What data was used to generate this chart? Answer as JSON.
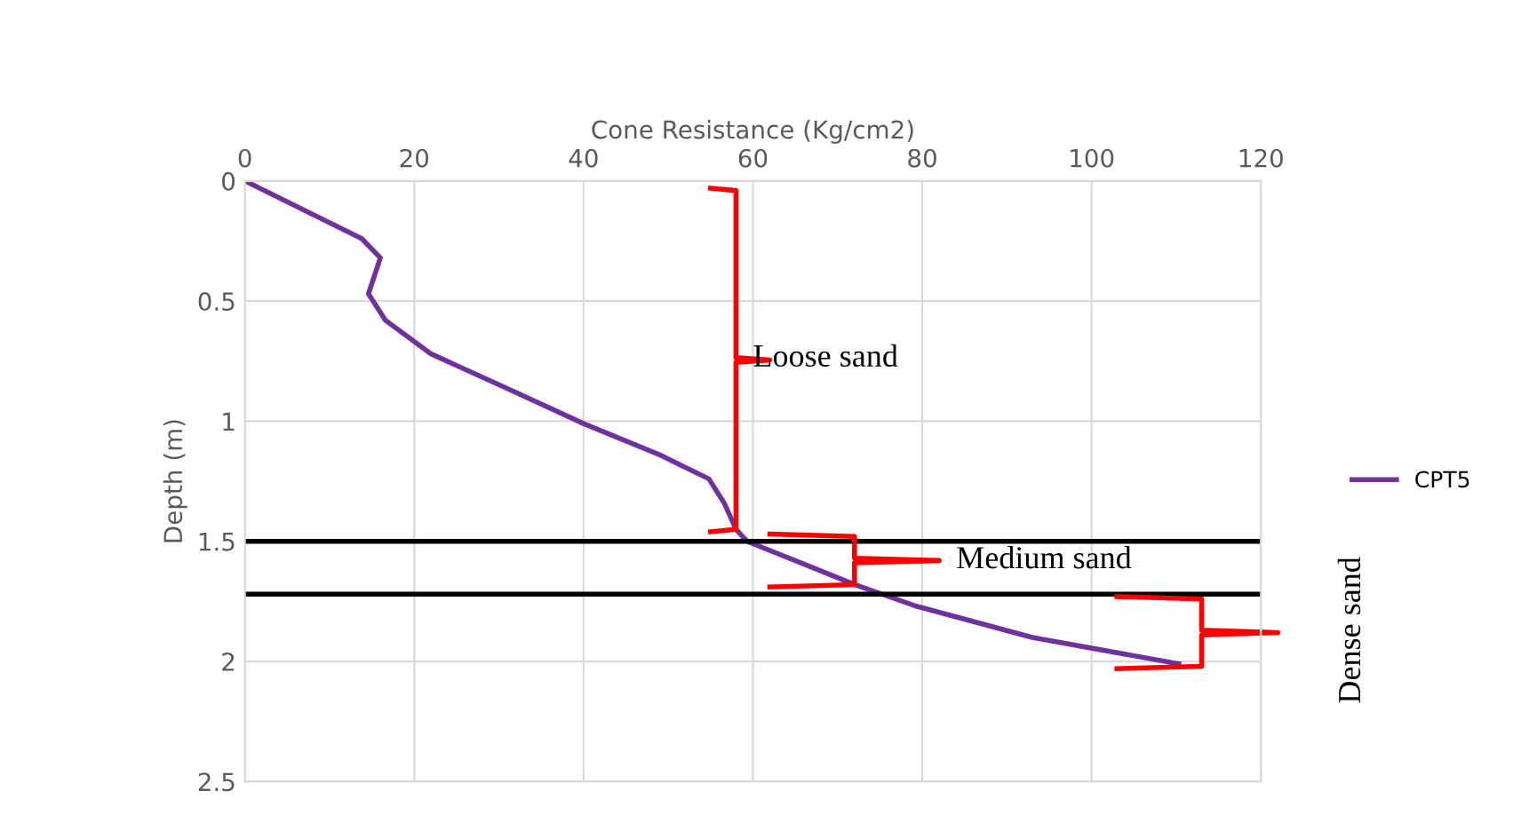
{
  "chart_data": {
    "type": "line",
    "xlabel": "Cone Resistance (Kg/cm2)",
    "ylabel": "Depth (m)",
    "series": [
      {
        "name": "CPT5",
        "color": "#7030a0",
        "x": [
          0,
          13.8,
          16,
          14.6,
          16.6,
          22,
          32,
          40,
          49,
          54.8,
          56.6,
          58,
          59.3,
          65.7,
          72,
          79.3,
          93,
          110.3
        ],
        "values": [
          0,
          0.24,
          0.32,
          0.47,
          0.58,
          0.72,
          0.88,
          1.01,
          1.14,
          1.24,
          1.34,
          1.45,
          1.5,
          1.59,
          1.68,
          1.77,
          1.9,
          2.01
        ]
      }
    ],
    "xlim": [
      0,
      120
    ],
    "xticks": [
      0,
      20,
      40,
      60,
      80,
      100,
      120
    ],
    "ylim": [
      2.5,
      0
    ],
    "yticks": [
      0,
      0.5,
      1,
      1.5,
      2,
      2.5
    ],
    "ref_lines": [
      {
        "axis": "y",
        "value": 1.5,
        "color": "#000000"
      },
      {
        "axis": "y",
        "value": 1.72,
        "color": "#000000"
      }
    ],
    "annotations": [
      "Loose sand",
      "Medium sand",
      "Dense sand"
    ],
    "grid": true,
    "legend": "right",
    "marker": "none",
    "line_style": "solid"
  }
}
